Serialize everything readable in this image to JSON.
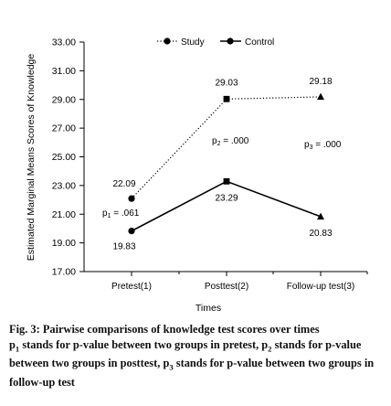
{
  "chart_data": {
    "type": "line",
    "title": "",
    "xlabel": "Times",
    "ylabel": "Estimated Marginal Means Scores of Knowledge",
    "categories": [
      "Pretest(1)",
      "Posttest(2)",
      "Follow-up test(3)"
    ],
    "ylim": [
      17.0,
      33.0
    ],
    "yticks": [
      "17.00",
      "19.00",
      "21.00",
      "23.00",
      "25.00",
      "27.00",
      "29.00",
      "31.00",
      "33.00"
    ],
    "legend_position": "top",
    "grid": false,
    "series": [
      {
        "name": "Study",
        "values": [
          22.09,
          29.03,
          29.18
        ],
        "labels": [
          "22.09",
          "29.03",
          "29.18"
        ],
        "line_style": "dotted",
        "markers": [
          "circle",
          "square",
          "triangle"
        ]
      },
      {
        "name": "Control",
        "values": [
          19.83,
          23.29,
          20.83
        ],
        "labels": [
          "19.83",
          "23.29",
          "20.83"
        ],
        "line_style": "solid",
        "markers": [
          "circle",
          "square",
          "triangle"
        ]
      }
    ],
    "annotations": [
      {
        "p": "p",
        "sub": "1",
        "text": " = .061"
      },
      {
        "p": "p",
        "sub": "2",
        "text": " = .000"
      },
      {
        "p": "p",
        "sub": "3",
        "text": " = .000"
      }
    ]
  },
  "caption": {
    "fig_label": "Fig. 3:",
    "title": " Pairwise comparisons of knowledge test scores over times",
    "notes": [
      {
        "p": "p",
        "sub": "1",
        "text": " stands for p-value between two groups in pretest, "
      },
      {
        "p": "p",
        "sub": "2",
        "text": " stands for p-value between two groups in posttest, "
      },
      {
        "p": "p",
        "sub": "3",
        "text": " stands for p-value between two groups in follow-up test"
      }
    ]
  }
}
